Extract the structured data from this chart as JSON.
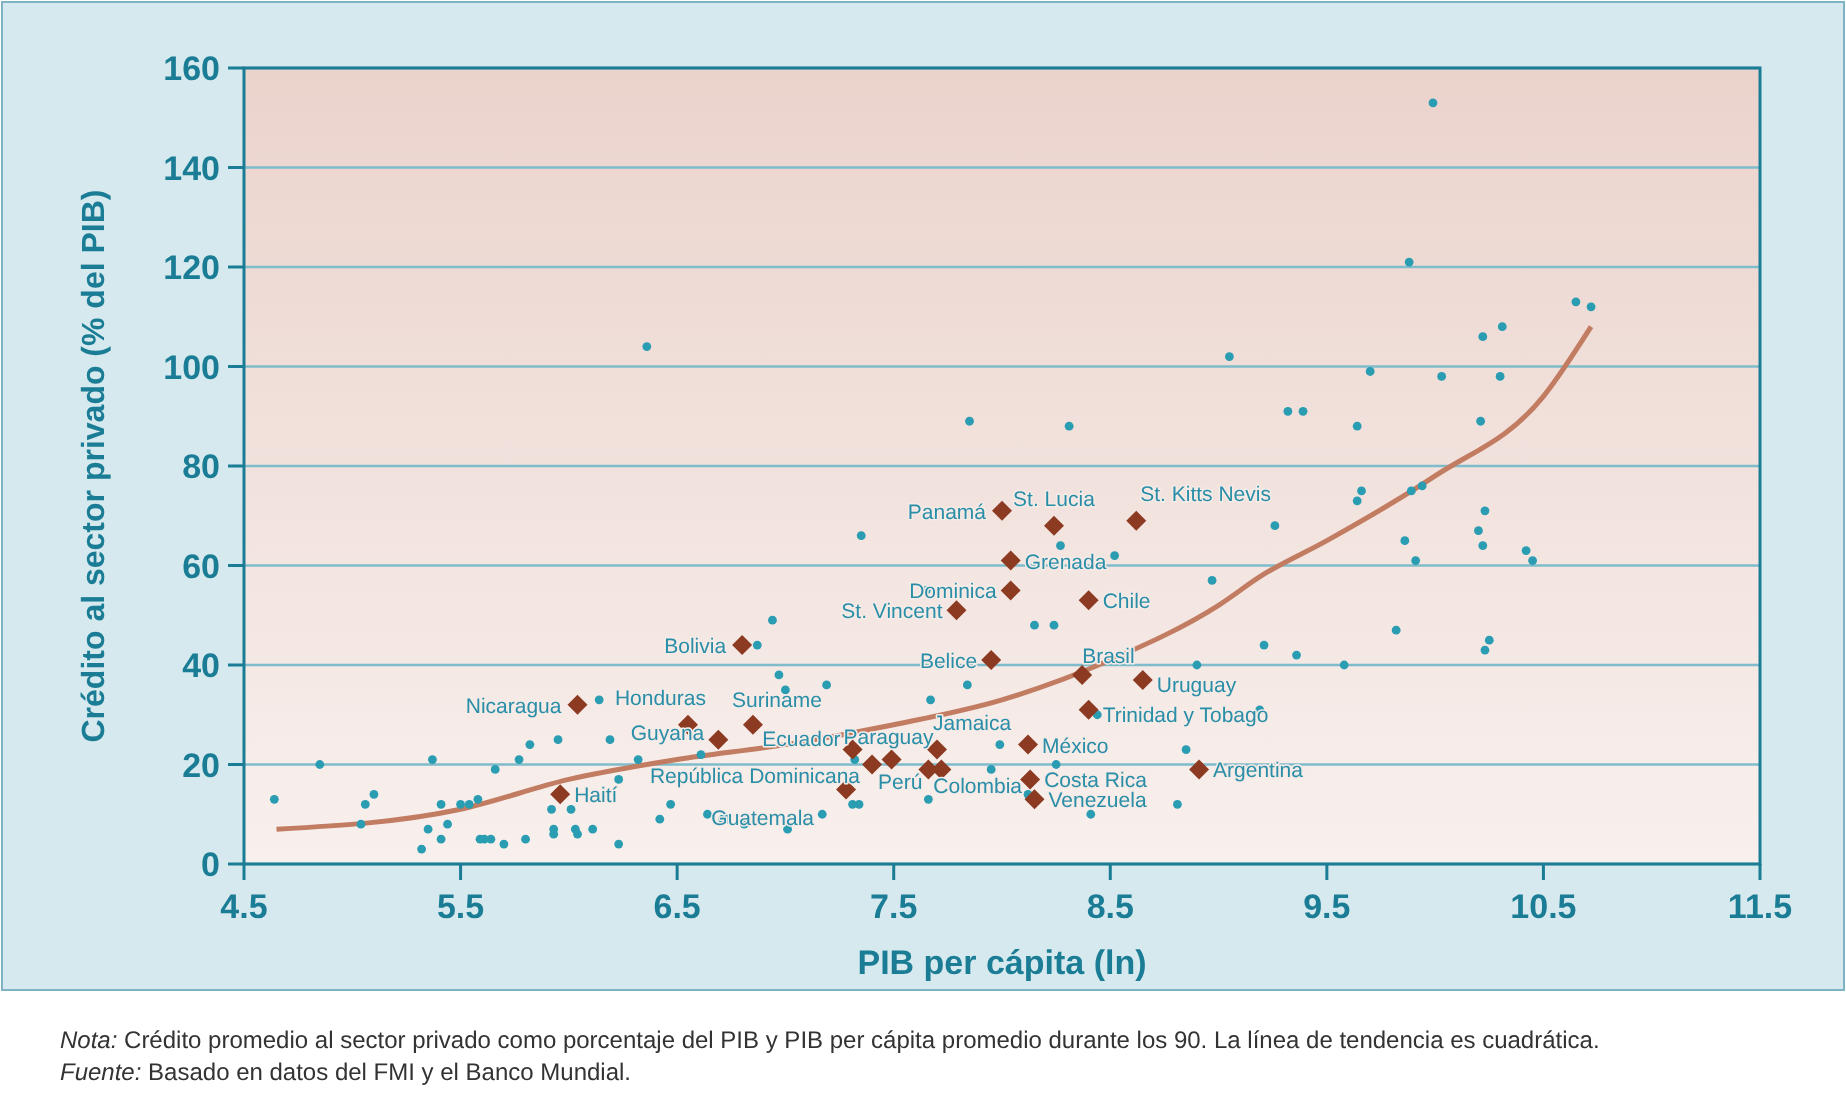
{
  "chart_data": {
    "type": "scatter",
    "xlabel": "PIB per cápita (ln)",
    "ylabel": "Crédito al sector privado (% del PIB)",
    "xlim": [
      4.5,
      11.5
    ],
    "xticks": [
      4.5,
      5.5,
      6.5,
      7.5,
      8.5,
      9.5,
      10.5,
      11.5
    ],
    "ylim": [
      0,
      160
    ],
    "yticks": [
      0,
      20,
      40,
      60,
      80,
      100,
      120,
      140,
      160
    ],
    "grid": "y",
    "series": [
      {
        "type": "scatter",
        "marker": "circle",
        "color": "#2a9db2",
        "x": [
          6.36,
          4.64,
          4.85,
          5.04,
          5.06,
          5.1,
          5.32,
          5.35,
          5.41,
          5.37,
          5.41,
          5.44,
          5.5,
          5.54,
          5.58,
          5.59,
          5.61,
          5.64,
          5.66,
          5.7,
          5.77,
          5.8,
          5.82,
          5.92,
          5.93,
          5.93,
          5.95,
          6.01,
          6.03,
          6.04,
          6.11,
          6.14,
          6.19,
          6.23,
          6.23,
          6.32,
          6.42,
          6.47,
          6.64,
          6.71,
          6.73,
          6.61,
          7.85,
          8.31,
          7.35,
          8.27,
          8.52,
          8.97,
          6.94,
          7.65,
          8.15,
          8.24,
          6.87,
          6.97,
          7.0,
          7.19,
          7.84,
          7.67,
          8.9,
          8.44,
          7.99,
          8.25,
          8.85,
          7.95,
          7.32,
          8.12,
          7.31,
          7.34,
          7.17,
          6.81,
          7.01,
          7.66,
          8.41,
          8.81,
          9.99,
          9.88,
          10.65,
          10.72,
          10.31,
          10.22,
          9.05,
          9.7,
          10.03,
          10.3,
          9.32,
          9.39,
          9.64,
          10.21,
          9.66,
          9.64,
          9.89,
          9.94,
          10.23,
          9.26,
          10.2,
          10.22,
          9.86,
          9.91,
          10.42,
          10.45,
          9.82,
          9.21,
          9.36,
          9.58,
          10.25,
          10.23,
          9.19
        ],
        "values": [
          104,
          13,
          20,
          8,
          12,
          14,
          3,
          7,
          5,
          21,
          12,
          8,
          12,
          12,
          13,
          5,
          5,
          5,
          19,
          4,
          21,
          5,
          24,
          11,
          7,
          6,
          25,
          11,
          7,
          6,
          7,
          33,
          25,
          17,
          4,
          21,
          9,
          12,
          10,
          9,
          9,
          22,
          89,
          88,
          66,
          64,
          62,
          57,
          49,
          55,
          48,
          48,
          44,
          38,
          35,
          36,
          36,
          33,
          40,
          30,
          24,
          20,
          23,
          19,
          21,
          14,
          12,
          12,
          10,
          8,
          7,
          13,
          10,
          12,
          153,
          121,
          113,
          112,
          108,
          106,
          102,
          99,
          98,
          98,
          91,
          91,
          88,
          89,
          75,
          73,
          75,
          76,
          71,
          68,
          67,
          64,
          65,
          61,
          63,
          61,
          47,
          44,
          42,
          40,
          45,
          43,
          31
        ]
      },
      {
        "type": "scatter",
        "marker": "diamond",
        "color": "#8c3b22",
        "x": [
          6.04,
          5.96,
          6.55,
          6.69,
          6.85,
          6.8,
          7.4,
          7.31,
          7.49,
          7.28,
          7.7,
          7.66,
          7.72,
          7.79,
          8.0,
          8.24,
          8.62,
          8.04,
          8.04,
          8.4,
          7.95,
          8.37,
          8.65,
          8.4,
          8.12,
          8.13,
          8.15,
          8.91
        ],
        "values": [
          32,
          14,
          28,
          25,
          28,
          44,
          20,
          23,
          21,
          15,
          23,
          19,
          19,
          51,
          71,
          68,
          69,
          61,
          55,
          53,
          41,
          38,
          37,
          31,
          24,
          17,
          13,
          19
        ]
      },
      {
        "type": "line",
        "marker": "none",
        "line_style": "solid",
        "color": "#c27c62",
        "x": [
          4.65,
          5.5,
          6.0,
          6.5,
          7.0,
          7.5,
          8.0,
          8.5,
          9.0,
          9.2,
          9.5,
          10.0,
          10.5,
          10.72
        ],
        "values": [
          7,
          11,
          17,
          21,
          24,
          28,
          33,
          41,
          52,
          58,
          65,
          78,
          94,
          108
        ]
      }
    ],
    "annotations": [
      {
        "text": "Nicaragua",
        "x": 6.04,
        "y": 32
      },
      {
        "text": "Haití",
        "x": 5.96,
        "y": 14
      },
      {
        "text": "Honduras",
        "x": 6.55,
        "y": 28
      },
      {
        "text": "Guyana",
        "x": 6.69,
        "y": 25
      },
      {
        "text": "Suriname",
        "x": 6.85,
        "y": 28
      },
      {
        "text": "Bolivia",
        "x": 6.8,
        "y": 44
      },
      {
        "text": "República Dominicana",
        "x": 7.4,
        "y": 20
      },
      {
        "text": "Ecuador",
        "x": 7.31,
        "y": 23
      },
      {
        "text": "Paraguay",
        "x": 7.49,
        "y": 21
      },
      {
        "text": "Guatemala",
        "x": 7.28,
        "y": 15
      },
      {
        "text": "Jamaica",
        "x": 7.7,
        "y": 23
      },
      {
        "text": "Perú",
        "x": 7.66,
        "y": 19
      },
      {
        "text": "Colombia",
        "x": 7.72,
        "y": 19
      },
      {
        "text": "St. Vincent",
        "x": 7.79,
        "y": 51
      },
      {
        "text": "Panamá",
        "x": 8.0,
        "y": 71
      },
      {
        "text": "St. Lucia",
        "x": 8.24,
        "y": 68
      },
      {
        "text": "St. Kitts Nevis",
        "x": 8.62,
        "y": 69
      },
      {
        "text": "Grenada",
        "x": 8.04,
        "y": 61
      },
      {
        "text": "Dominica",
        "x": 8.04,
        "y": 55
      },
      {
        "text": "Chile",
        "x": 8.4,
        "y": 53
      },
      {
        "text": "Belice",
        "x": 7.95,
        "y": 41
      },
      {
        "text": "Brasil",
        "x": 8.37,
        "y": 38
      },
      {
        "text": "Uruguay",
        "x": 8.65,
        "y": 37
      },
      {
        "text": "Trinidad y Tobago",
        "x": 8.4,
        "y": 31
      },
      {
        "text": "México",
        "x": 8.12,
        "y": 24
      },
      {
        "text": "Costa Rica",
        "x": 8.13,
        "y": 17
      },
      {
        "text": "Venezuela",
        "x": 8.15,
        "y": 13
      },
      {
        "text": "Argentina",
        "x": 8.91,
        "y": 19
      },
      "Nota: Crédito promedio al sector privado como porcentaje del PIB y PIB per cápita promedio durante los 90. La línea de tendencia es cuadrática.",
      "Fuente: Basado  en datos del FMI y el Banco Mundial."
    ]
  }
}
